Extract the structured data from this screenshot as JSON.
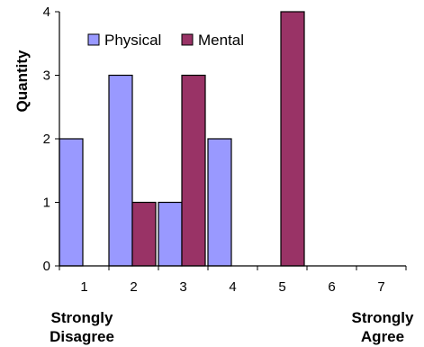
{
  "chart_data": {
    "type": "bar",
    "categories": [
      "1",
      "2",
      "3",
      "4",
      "5",
      "6",
      "7"
    ],
    "series": [
      {
        "name": "Physical",
        "values": [
          2,
          3,
          1,
          2,
          0,
          0,
          0
        ],
        "color": "#9999ff"
      },
      {
        "name": "Mental",
        "values": [
          0,
          1,
          3,
          0,
          4,
          0,
          0
        ],
        "color": "#993366"
      }
    ],
    "title": "",
    "xlabel": "",
    "ylabel": "Quantity",
    "ylim": [
      0,
      4
    ],
    "yticks": [
      "0",
      "1",
      "2",
      "3",
      "4"
    ],
    "grid": false,
    "legend_position": "top-left",
    "scale_labels": {
      "left": [
        "Strongly",
        "Disagree"
      ],
      "right": [
        "Strongly",
        "Agree"
      ]
    }
  }
}
